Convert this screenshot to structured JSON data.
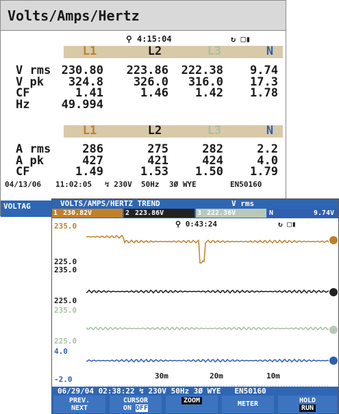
{
  "screen1": {
    "title": "Volts/Amps/Hertz",
    "time": "4:15:04",
    "phases": [
      "L1",
      "L2",
      "L3",
      "N"
    ],
    "voltage_rows": [
      {
        "label": "V rms",
        "values": [
          "230.80",
          "223.86",
          "222.38",
          "9.74"
        ]
      },
      {
        "label": "V pk",
        "values": [
          "324.8",
          "326.0",
          "316.0",
          "17.3"
        ]
      },
      {
        "label": "CF",
        "values": [
          "1.41",
          "1.46",
          "1.42",
          "1.78"
        ]
      },
      {
        "label": "Hz",
        "values": [
          "49.994"
        ]
      }
    ],
    "current_rows": [
      {
        "label": "A rms",
        "values": [
          "286",
          "275",
          "282",
          "2.2"
        ]
      },
      {
        "label": "A pk",
        "values": [
          "427",
          "421",
          "424",
          "4.0"
        ]
      },
      {
        "label": "CF",
        "values": [
          "1.49",
          "1.53",
          "1.50",
          "1.79"
        ]
      }
    ],
    "footer": {
      "date": "04/13/06",
      "clock": "11:02:05",
      "voltage": "230V",
      "frequency": "50Hz",
      "configuration": "3Ø WYE",
      "standard": "EN50160"
    },
    "menu_label": "VOLTAG"
  },
  "screen2": {
    "title": "VOLTS/AMPS/HERTZ TREND",
    "quantity": "V rms",
    "readouts": [
      {
        "channel": "1",
        "value": "230.82V"
      },
      {
        "channel": "2",
        "value": "223.86V"
      },
      {
        "channel": "3",
        "value": "222.36V"
      },
      {
        "channel": "N",
        "value": "9.74V"
      }
    ],
    "time": "0:43:24",
    "axis_labels": [
      "235.0",
      "225.0",
      "235.0",
      "225.0",
      "235.0",
      "225.0",
      "4.0",
      "-2.0"
    ],
    "time_labels": [
      "30m",
      "20m",
      "10m"
    ],
    "footer": {
      "date": "06/29/04",
      "clock": "02:38:22",
      "voltage": "230V",
      "frequency": "50Hz",
      "configuration": "3Ø WYE",
      "standard": "EN50160"
    },
    "buttons": [
      [
        "PREV.",
        "NEXT"
      ],
      [
        "CURSOR",
        "ON",
        "OFF"
      ],
      [
        "ZOOM"
      ],
      [
        "METER"
      ],
      [
        "HOLD",
        "RUN"
      ]
    ]
  }
}
